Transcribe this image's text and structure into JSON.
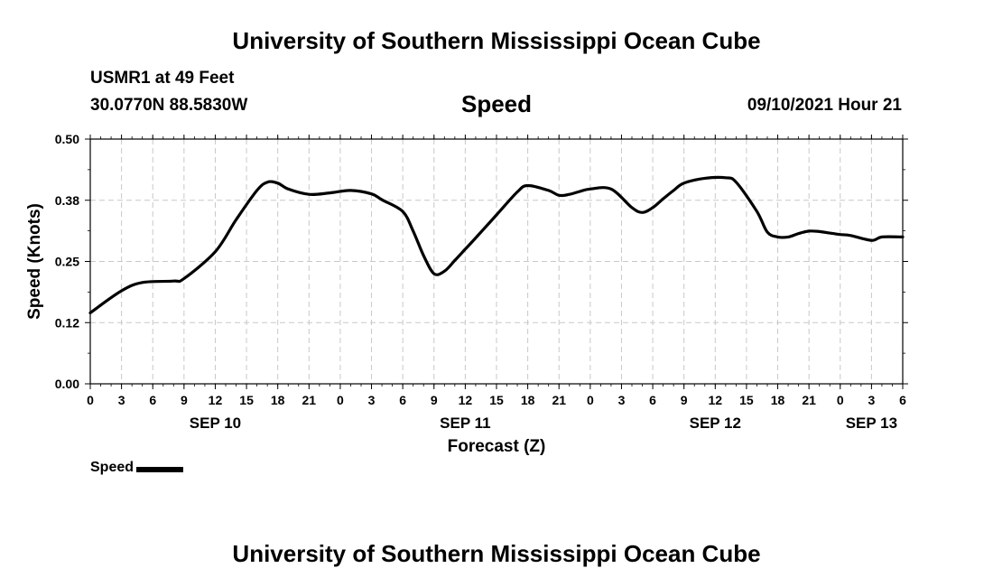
{
  "header": {
    "title_top": "University of Southern Mississippi Ocean Cube",
    "station": "USMR1 at 49 Feet",
    "coords": "30.0770N  88.5830W",
    "plot_title": "Speed",
    "datetime": "09/10/2021 Hour 21",
    "title_bottom": "University of Southern Mississippi Ocean Cube"
  },
  "legend": {
    "label": "Speed",
    "color": "#000000"
  },
  "chart_data": {
    "type": "line",
    "xlabel": "Forecast (Z)",
    "ylabel": "Speed (Knots)",
    "xlim": [
      0,
      78
    ],
    "ylim": [
      0,
      0.5
    ],
    "y_ticks": [
      "0.00",
      "0.12",
      "0.25",
      "0.38",
      "0.50"
    ],
    "x_ticks": [
      "0",
      "3",
      "6",
      "9",
      "12",
      "15",
      "18",
      "21",
      "0",
      "3",
      "6",
      "9",
      "12",
      "15",
      "18",
      "21",
      "0",
      "3",
      "6",
      "9",
      "12",
      "15",
      "18",
      "21",
      "0",
      "3",
      "6"
    ],
    "date_labels": [
      {
        "label": "SEP 10",
        "hour": 12
      },
      {
        "label": "SEP 11",
        "hour": 36
      },
      {
        "label": "SEP 12",
        "hour": 60
      },
      {
        "label": "SEP 13",
        "hour": 75
      }
    ],
    "grid": true,
    "series": [
      {
        "name": "Speed",
        "color": "#000000",
        "x": [
          0,
          3,
          5,
          8,
          9,
          12,
          14,
          16,
          17,
          18,
          19,
          21,
          23,
          25,
          27,
          28,
          30,
          31,
          32,
          33,
          34,
          35,
          36,
          37,
          39,
          41,
          42,
          44,
          45,
          46,
          47,
          48,
          50,
          52,
          53,
          54,
          55,
          56,
          57,
          59,
          61,
          62,
          64,
          65,
          66,
          67,
          68,
          69,
          70,
          71,
          72,
          73,
          75,
          76,
          78
        ],
        "y": [
          0.145,
          0.19,
          0.207,
          0.21,
          0.215,
          0.27,
          0.335,
          0.395,
          0.412,
          0.41,
          0.398,
          0.387,
          0.39,
          0.395,
          0.388,
          0.376,
          0.352,
          0.312,
          0.262,
          0.225,
          0.23,
          0.252,
          0.275,
          0.298,
          0.345,
          0.392,
          0.405,
          0.395,
          0.385,
          0.387,
          0.393,
          0.398,
          0.398,
          0.36,
          0.35,
          0.36,
          0.378,
          0.395,
          0.41,
          0.42,
          0.421,
          0.412,
          0.352,
          0.31,
          0.3,
          0.3,
          0.307,
          0.312,
          0.311,
          0.308,
          0.305,
          0.303,
          0.293,
          0.3,
          0.3
        ]
      }
    ]
  }
}
